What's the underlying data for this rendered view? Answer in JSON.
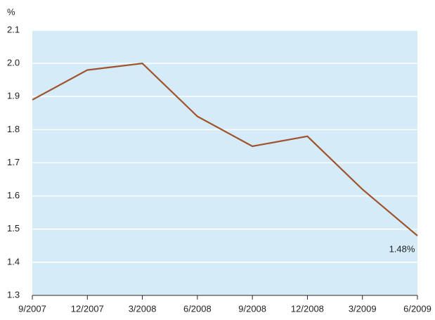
{
  "chart_data": {
    "type": "line",
    "y_unit_label": "%",
    "categories": [
      "9/2007",
      "12/2007",
      "3/2008",
      "6/2008",
      "9/2008",
      "12/2008",
      "3/2009",
      "6/2009"
    ],
    "series": [
      {
        "color": "#a0522d",
        "values": [
          1.89,
          1.98,
          2.0,
          1.84,
          1.75,
          1.78,
          1.62,
          1.48
        ],
        "value_labels": [
          null,
          null,
          null,
          null,
          null,
          null,
          null,
          "1.48%"
        ]
      }
    ],
    "ylim": [
      1.3,
      2.1
    ],
    "yticks": [
      1.3,
      1.4,
      1.5,
      1.6,
      1.7,
      1.8,
      1.9,
      {
        "value": 2,
        "label": "2.0"
      },
      2.1
    ],
    "grid": true,
    "plot_background": "#d5ebf8"
  }
}
